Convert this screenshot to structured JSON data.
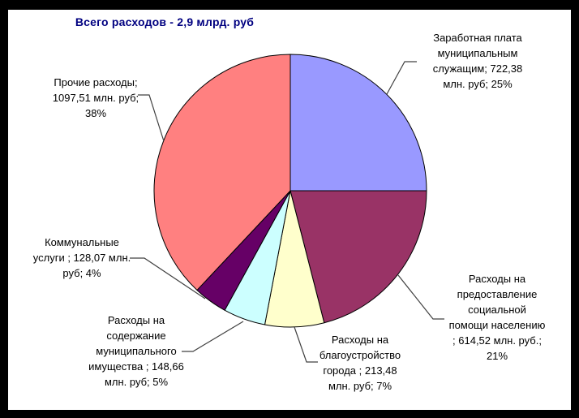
{
  "title": "Всего расходов - 2,9 млрд. руб",
  "chart_data": {
    "type": "pie",
    "title": "Всего расходов - 2,9 млрд. руб",
    "total_label": "2,9 млрд. руб",
    "units": "млн. руб",
    "start_angle_deg": 0,
    "direction": "clockwise",
    "legend_position": "none",
    "data_labels": "outside-with-leader-lines",
    "slices": [
      {
        "label": "Заработная плата муниципальным служащим",
        "value": 722.38,
        "percent": 25,
        "color": "#9999FF"
      },
      {
        "label": "Расходы на предоставление социальной помощи населению",
        "value": 614.52,
        "percent": 21,
        "color": "#993366"
      },
      {
        "label": "Расходы на благоустройство города",
        "value": 213.48,
        "percent": 7,
        "color": "#FFFFCC"
      },
      {
        "label": "Расходы на содержание муниципального имущества",
        "value": 148.66,
        "percent": 5,
        "color": "#CCFFFF"
      },
      {
        "label": "Коммунальные услуги",
        "value": 128.07,
        "percent": 4,
        "color": "#660066"
      },
      {
        "label": "Прочие расходы",
        "value": 1097.51,
        "percent": 38,
        "color": "#FF8080"
      }
    ],
    "slice_border_color": "#000000",
    "leader_line_color": "#404040",
    "frame_color": "#000000",
    "background_color": "#FFFFFF",
    "title_color": "#000080"
  },
  "labels": {
    "salary": "Заработная плата\nмуниципальным\nслужащим; 722,38\nмлн. руб; 25%",
    "social": "Расходы на\nпредоставление\nсоциальной\nпомощи населению\n; 614,52 млн. руб.;\n21%",
    "city": "Расходы на\nблагоустройство\nгорода ; 213,48\nмлн. руб; 7%",
    "property": "Расходы на\nсодержание\nмуниципального\nимущества ; 148,66\nмлн. руб; 5%",
    "communal": "Коммунальные\nуслуги ; 128,07 млн.\nруб; 4%",
    "other": "Прочие расходы;\n1097,51 млн. руб;\n38%"
  }
}
